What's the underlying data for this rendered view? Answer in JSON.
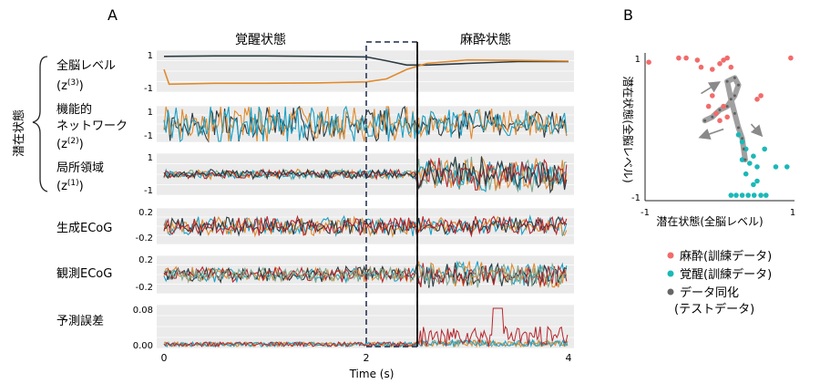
{
  "panel_a": {
    "label": "A",
    "state_awake": "覚醒状態",
    "state_anesthesia": "麻酔状態",
    "latent_label": "潜在状態",
    "xlabel": "Time (s)",
    "xticks": [
      "0",
      "2",
      "4"
    ],
    "rows": [
      {
        "label": "全脳レベル",
        "sub": "(z",
        "sup": "(3)",
        "tail": ")",
        "ticks": [
          "1",
          "-1"
        ]
      },
      {
        "label": "機能的",
        "label2": "ネットワーク",
        "sub": "(z",
        "sup": "(2)",
        "tail": ")",
        "ticks": [
          "1",
          "-1"
        ]
      },
      {
        "label": "局所領域",
        "sub": "(z",
        "sup": "(1)",
        "tail": ")",
        "ticks": [
          "1",
          "-1"
        ]
      },
      {
        "label": "生成ECoG",
        "ticks": [
          "0.2",
          "-0.2"
        ]
      },
      {
        "label": "観測ECoG",
        "ticks": [
          "0.2",
          "-0.2"
        ]
      },
      {
        "label": "予測誤差",
        "ticks": [
          "0.08",
          "0.00"
        ]
      }
    ]
  },
  "panel_b": {
    "label": "B",
    "ylabel": "潜在状態(全脳レベル)",
    "xlabel": "潜在状態(全脳レベル)",
    "yticks": [
      "1",
      "-1"
    ],
    "xticks": [
      "-1",
      "1"
    ],
    "legend": [
      {
        "label": "麻酔(訓練データ)",
        "color": "#f26b6b"
      },
      {
        "label": "覚醒(訓練データ)",
        "color": "#1bb8b8"
      },
      {
        "label": "データ同化",
        "label2": "(テストデータ)",
        "color": "#666666"
      }
    ]
  },
  "colors": {
    "awake": "#1aa7b8",
    "anesthesia": "#e8505b",
    "dark": "#2b3a42",
    "orange": "#e08a2e",
    "teal": "#1ba0c4",
    "red": "#b5272d",
    "sage": "#7ea890",
    "panel_bg": "#ebebeb"
  },
  "chart_data": [
    {
      "type": "line",
      "title": "A",
      "xlabel": "Time (s)",
      "xlim": [
        0,
        4
      ],
      "markers": {
        "dashed_window": [
          2.0,
          2.5
        ],
        "transition_line": 2.5
      },
      "annotations": [
        "覚醒状態",
        "麻酔状態"
      ],
      "panels": [
        {
          "ylabel": "全脳レベル (z(3))",
          "ylim": [
            -1,
            1
          ],
          "series": [
            {
              "color": "#2b3a42",
              "x": [
                0,
                0.5,
                1.0,
                1.5,
                2.0,
                2.2,
                2.4,
                2.6,
                3.0,
                3.5,
                4.0
              ],
              "y": [
                0.85,
                0.88,
                0.88,
                0.85,
                0.82,
                0.6,
                0.35,
                0.35,
                0.45,
                0.55,
                0.55
              ]
            },
            {
              "color": "#e08a2e",
              "x": [
                0,
                0.05,
                0.5,
                1.0,
                1.5,
                2.0,
                2.2,
                2.4,
                2.6,
                3.0,
                3.5,
                4.0
              ],
              "y": [
                0.1,
                -0.75,
                -0.7,
                -0.7,
                -0.68,
                -0.62,
                -0.45,
                0.1,
                0.45,
                0.65,
                0.62,
                0.58
              ]
            }
          ]
        },
        {
          "ylabel": "機能的ネットワーク (z(2))",
          "ylim": [
            -1,
            1
          ]
        },
        {
          "ylabel": "局所領域 (z(1))",
          "ylim": [
            -1,
            1
          ]
        },
        {
          "ylabel": "生成ECoG",
          "ylim": [
            -0.2,
            0.2
          ]
        },
        {
          "ylabel": "観測ECoG",
          "ylim": [
            -0.2,
            0.2
          ]
        },
        {
          "ylabel": "予測誤差",
          "ylim": [
            0.0,
            0.08
          ]
        }
      ]
    },
    {
      "type": "scatter",
      "title": "B",
      "xlabel": "潜在状態(全脳レベル)",
      "ylabel": "潜在状態(全脳レベル)",
      "xlim": [
        -1,
        1
      ],
      "ylim": [
        -1,
        1
      ],
      "series": [
        {
          "name": "麻酔(訓練データ)",
          "color": "#f26b6b",
          "points": [
            [
              -0.95,
              0.92
            ],
            [
              -0.55,
              0.98
            ],
            [
              -0.45,
              0.98
            ],
            [
              -0.3,
              0.95
            ],
            [
              -0.25,
              0.85
            ],
            [
              -0.1,
              0.82
            ],
            [
              0.0,
              0.9
            ],
            [
              0.05,
              0.95
            ],
            [
              0.1,
              0.98
            ],
            [
              0.15,
              0.85
            ],
            [
              0.95,
              0.98
            ],
            [
              -0.15,
              0.3
            ],
            [
              -0.1,
              0.45
            ],
            [
              -0.05,
              0.2
            ],
            [
              0.0,
              0.1
            ],
            [
              0.05,
              0.3
            ],
            [
              0.1,
              0.15
            ],
            [
              0.5,
              0.4
            ],
            [
              0.55,
              0.45
            ]
          ]
        },
        {
          "name": "覚醒(訓練データ)",
          "color": "#1bb8b8",
          "points": [
            [
              0.25,
              -0.1
            ],
            [
              0.3,
              -0.2
            ],
            [
              0.35,
              -0.3
            ],
            [
              0.3,
              -0.45
            ],
            [
              0.4,
              -0.5
            ],
            [
              0.45,
              -0.4
            ],
            [
              0.5,
              -0.55
            ],
            [
              0.35,
              -0.65
            ],
            [
              0.6,
              -0.3
            ],
            [
              0.75,
              -0.55
            ],
            [
              0.9,
              -0.55
            ],
            [
              0.15,
              -0.95
            ],
            [
              0.22,
              -0.95
            ],
            [
              0.3,
              -0.95
            ],
            [
              0.38,
              -0.95
            ],
            [
              0.46,
              -0.95
            ],
            [
              0.55,
              -0.95
            ],
            [
              0.62,
              -0.95
            ],
            [
              0.45,
              -0.8
            ],
            [
              0.5,
              -0.75
            ]
          ]
        },
        {
          "name": "データ同化 (テストデータ)",
          "color": "#666666",
          "points": [
            [
              -0.2,
              0.1
            ],
            [
              -0.1,
              0.15
            ],
            [
              0.0,
              0.25
            ],
            [
              0.1,
              0.3
            ],
            [
              0.2,
              0.45
            ],
            [
              0.25,
              0.6
            ],
            [
              0.2,
              0.7
            ],
            [
              0.1,
              0.65
            ],
            [
              0.15,
              0.4
            ],
            [
              0.2,
              0.2
            ],
            [
              0.25,
              0.0
            ],
            [
              0.3,
              -0.15
            ],
            [
              0.32,
              -0.3
            ],
            [
              0.34,
              -0.45
            ]
          ]
        }
      ],
      "legend_position": "bottom"
    }
  ]
}
